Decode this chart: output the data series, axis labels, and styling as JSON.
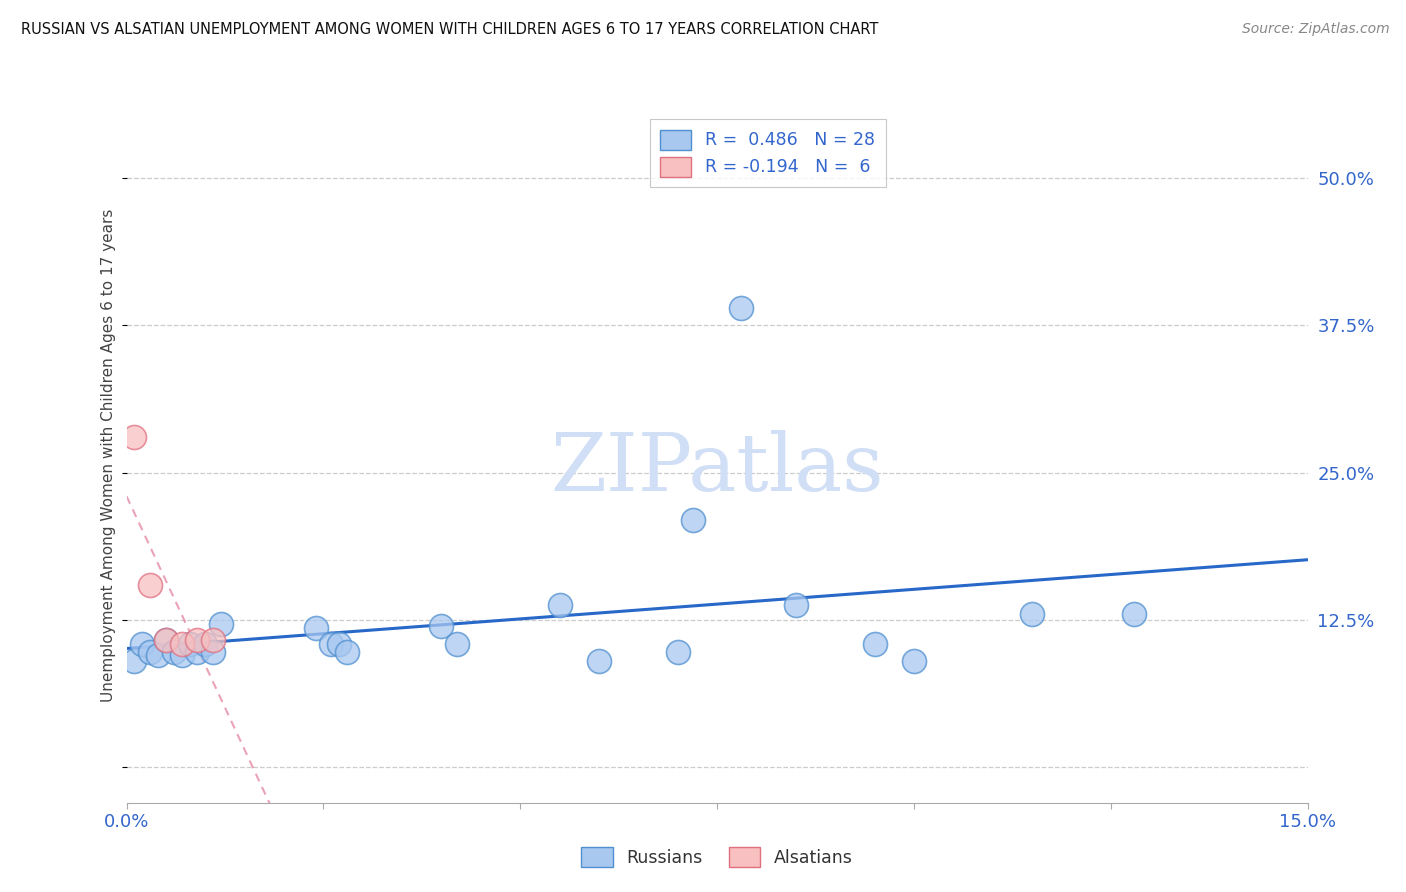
{
  "title": "RUSSIAN VS ALSATIAN UNEMPLOYMENT AMONG WOMEN WITH CHILDREN AGES 6 TO 17 YEARS CORRELATION CHART",
  "source": "Source: ZipAtlas.com",
  "ylabel": "Unemployment Among Women with Children Ages 6 to 17 years",
  "yticks": [
    0.0,
    0.125,
    0.25,
    0.375,
    0.5
  ],
  "ytick_labels": [
    "",
    "12.5%",
    "25.0%",
    "37.5%",
    "50.0%"
  ],
  "xlim": [
    0.0,
    0.15
  ],
  "ylim": [
    -0.03,
    0.56
  ],
  "russian_color_face": "#A8C8F0",
  "russian_color_edge": "#5090D0",
  "alsatian_color_face": "#F8C0C0",
  "alsatian_color_edge": "#E07080",
  "regression_blue": "#2868C8",
  "regression_pink": "#E07090",
  "watermark": "ZIPatlas",
  "watermark_color": "#D0DFF5",
  "russians_x": [
    0.001,
    0.002,
    0.003,
    0.004,
    0.005,
    0.006,
    0.007,
    0.008,
    0.009,
    0.01,
    0.011,
    0.012,
    0.024,
    0.026,
    0.027,
    0.028,
    0.04,
    0.042,
    0.055,
    0.06,
    0.07,
    0.072,
    0.078,
    0.085,
    0.095,
    0.1,
    0.115,
    0.128
  ],
  "russians_y": [
    0.09,
    0.105,
    0.098,
    0.095,
    0.108,
    0.098,
    0.095,
    0.105,
    0.098,
    0.105,
    0.098,
    0.122,
    0.118,
    0.105,
    0.105,
    0.098,
    0.12,
    0.105,
    0.138,
    0.09,
    0.098,
    0.21,
    0.39,
    0.138,
    0.105,
    0.09,
    0.13,
    0.13
  ],
  "alsatians_x": [
    0.001,
    0.003,
    0.005,
    0.007,
    0.009,
    0.011
  ],
  "alsatians_y": [
    0.28,
    0.155,
    0.108,
    0.105,
    0.108,
    0.108
  ],
  "bubble_size": 300
}
